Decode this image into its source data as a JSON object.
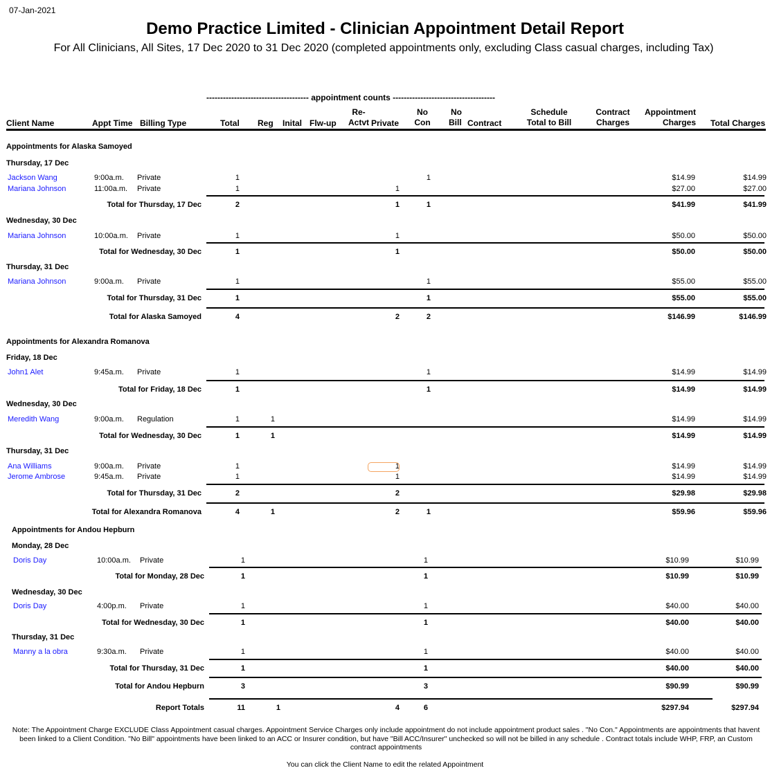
{
  "report": {
    "date": "07-Jan-2021",
    "title": "Demo Practice Limited  - Clinician Appointment Detail Report",
    "subtitle": "For All Clinicians, All Sites, 17 Dec 2020 to 31 Dec 2020 (completed appointments only, excluding Class casual charges, including Tax)",
    "counts_header": "------------------------------------- appointment counts -------------------------------------"
  },
  "columns": {
    "client_name": "Client Name",
    "appt_time": "Appt Time",
    "billing_type": "Billing Type",
    "total": "Total",
    "reg": "Reg",
    "inital": "Inital",
    "flw_up": "Flw-up",
    "re_actvt_1": "Re-",
    "re_actvt_2": "Actvt",
    "private": "Private",
    "no_con_1": "No",
    "no_con_2": "Con",
    "no_bill_1": "No",
    "no_bill_2": "Bill",
    "contract": "Contract",
    "schedule_1": "Schedule",
    "schedule_2": "Total to Bill",
    "contract_charges_1": "Contract",
    "contract_charges_2": "Charges",
    "appt_charges_1": "Appointment",
    "appt_charges_2": "Charges",
    "total_charges": "Total Charges"
  },
  "rows": [
    {
      "type": "group",
      "label": "Appointments for Alaska Samoyed"
    },
    {
      "type": "day",
      "label": "Thursday, 17 Dec"
    },
    {
      "type": "appt",
      "client": "Jackson Wang",
      "time": "9:00a.m.",
      "billing": "Private",
      "total": "1",
      "nocon": "1",
      "appt_charges": "$14.99",
      "total_charges": "$14.99"
    },
    {
      "type": "appt",
      "client": "Mariana Johnson",
      "time": "11:00a.m.",
      "billing": "Private",
      "total": "1",
      "private": "1",
      "appt_charges": "$27.00",
      "total_charges": "$27.00"
    },
    {
      "type": "total",
      "label": "Total for Thursday, 17 Dec",
      "total": "2",
      "private": "1",
      "nocon": "1",
      "appt_charges": "$41.99",
      "total_charges": "$41.99"
    },
    {
      "type": "day",
      "label": "Wednesday, 30 Dec"
    },
    {
      "type": "appt",
      "client": "Mariana Johnson",
      "time": "10:00a.m.",
      "billing": "Private",
      "total": "1",
      "private": "1",
      "appt_charges": "$50.00",
      "total_charges": "$50.00"
    },
    {
      "type": "total",
      "label": "Total for Wednesday, 30 Dec",
      "total": "1",
      "private": "1",
      "appt_charges": "$50.00",
      "total_charges": "$50.00"
    },
    {
      "type": "day",
      "label": "Thursday, 31 Dec"
    },
    {
      "type": "appt",
      "client": "Mariana Johnson",
      "time": "9:00a.m.",
      "billing": "Private",
      "total": "1",
      "nocon": "1",
      "appt_charges": "$55.00",
      "total_charges": "$55.00"
    },
    {
      "type": "total",
      "label": "Total for Thursday, 31 Dec",
      "total": "1",
      "nocon": "1",
      "appt_charges": "$55.00",
      "total_charges": "$55.00"
    },
    {
      "type": "gtotal",
      "label": "Total for Alaska Samoyed",
      "total": "4",
      "private": "2",
      "nocon": "2",
      "appt_charges": "$146.99",
      "total_charges": "$146.99"
    },
    {
      "type": "group",
      "label": "Appointments for Alexandra Romanova"
    },
    {
      "type": "day",
      "label": "Friday, 18 Dec"
    },
    {
      "type": "appt",
      "client": "John1 Alet",
      "time": "9:45a.m.",
      "billing": "Private",
      "total": "1",
      "nocon": "1",
      "appt_charges": "$14.99",
      "total_charges": "$14.99"
    },
    {
      "type": "total",
      "label": "Total for Friday, 18 Dec",
      "total": "1",
      "nocon": "1",
      "appt_charges": "$14.99",
      "total_charges": "$14.99"
    },
    {
      "type": "day",
      "label": "Wednesday, 30 Dec"
    },
    {
      "type": "appt",
      "client": "Meredith Wang",
      "time": "9:00a.m.",
      "billing": "Regulation",
      "total": "1",
      "reg": "1",
      "appt_charges": "$14.99",
      "total_charges": "$14.99"
    },
    {
      "type": "total",
      "label": "Total for Wednesday, 30 Dec",
      "total": "1",
      "reg": "1",
      "appt_charges": "$14.99",
      "total_charges": "$14.99"
    },
    {
      "type": "day",
      "label": "Thursday, 31 Dec"
    },
    {
      "type": "appt",
      "client": "Ana Williams",
      "time": "9:00a.m.",
      "billing": "Private",
      "total": "1",
      "private": "1",
      "appt_charges": "$14.99",
      "total_charges": "$14.99"
    },
    {
      "type": "appt",
      "client": "Jerome Ambrose",
      "time": "9:45a.m.",
      "billing": "Private",
      "total": "1",
      "private": "1",
      "appt_charges": "$14.99",
      "total_charges": "$14.99"
    },
    {
      "type": "total",
      "label": "Total for Thursday, 31 Dec",
      "total": "2",
      "private": "2",
      "appt_charges": "$29.98",
      "total_charges": "$29.98"
    },
    {
      "type": "gtotal",
      "label": "Total for Alexandra Romanova",
      "total": "4",
      "reg": "1",
      "private": "2",
      "nocon": "1",
      "appt_charges": "$59.96",
      "total_charges": "$59.96"
    },
    {
      "type": "group",
      "label": "Appointments for Andou Hepburn"
    },
    {
      "type": "day",
      "label": "Monday, 28 Dec"
    },
    {
      "type": "appt",
      "client": "Doris Day",
      "time": "10:00a.m.",
      "billing": "Private",
      "total": "1",
      "nocon": "1",
      "appt_charges": "$10.99",
      "total_charges": "$10.99"
    },
    {
      "type": "total",
      "label": "Total for Monday, 28 Dec",
      "total": "1",
      "nocon": "1",
      "appt_charges": "$10.99",
      "total_charges": "$10.99"
    },
    {
      "type": "day",
      "label": "Wednesday, 30 Dec"
    },
    {
      "type": "appt",
      "client": "Doris Day",
      "time": "4:00p.m.",
      "billing": "Private",
      "total": "1",
      "nocon": "1",
      "appt_charges": "$40.00",
      "total_charges": "$40.00"
    },
    {
      "type": "total",
      "label": "Total for Wednesday, 30 Dec",
      "total": "1",
      "nocon": "1",
      "appt_charges": "$40.00",
      "total_charges": "$40.00"
    },
    {
      "type": "day",
      "label": "Thursday, 31 Dec"
    },
    {
      "type": "appt",
      "client": "Manny a la obra",
      "time": "9:30a.m.",
      "billing": "Private",
      "total": "1",
      "nocon": "1",
      "appt_charges": "$40.00",
      "total_charges": "$40.00"
    },
    {
      "type": "total",
      "label": "Total for Thursday, 31 Dec",
      "total": "1",
      "nocon": "1",
      "appt_charges": "$40.00",
      "total_charges": "$40.00"
    },
    {
      "type": "gtotal",
      "label": "Total for Andou Hepburn",
      "total": "3",
      "nocon": "3",
      "appt_charges": "$90.99",
      "total_charges": "$90.99"
    },
    {
      "type": "report",
      "label": "Report Totals",
      "total": "11",
      "reg": "1",
      "private": "4",
      "nocon": "6",
      "appt_charges": "$297.94",
      "total_charges": "$297.94"
    }
  ],
  "footer": {
    "note": "Note: The Appointment Charge EXCLUDE Class Appointment casual charges. Appointment Service Charges only include appointment do not include appointment product sales . \"No Con.\" Appointments are appointments that havent been linked to a Client Condition. \"No Bill\" appointments have been linked to an ACC or Insurer condition, but have \"Bill ACC/Insurer\" unchecked so will not be billed in any schedule . Contract totals include WHP, FRP, an Custom contract appointments",
    "hint": "You can click the Client Name to edit the related Appointment"
  }
}
